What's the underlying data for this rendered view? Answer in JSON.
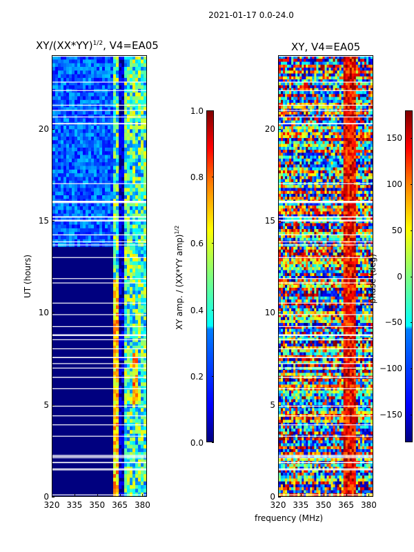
{
  "suptitle": "2021-01-17 0.0-24.0",
  "left_title": "XY/(XX*YY)",
  "left_title_sup": "1/2",
  "left_title_rest": ", V4=EA05",
  "right_title": "XY, V4=EA05",
  "ylabel": "UT (hours)",
  "xlabel": "frequency (MHz)",
  "cbar1_label": "XY amp. / (XX*YY amp)",
  "cbar1_label_sup": "1/2",
  "cbar2_label": "phase (deg)",
  "chart_data": [
    {
      "type": "heatmap",
      "title": "XY/(XX*YY)^1/2, V4=EA05",
      "xlabel": "",
      "ylabel": "UT (hours)",
      "xlim": [
        320,
        383
      ],
      "ylim": [
        0,
        24
      ],
      "xticks": [
        320,
        335,
        350,
        365,
        380
      ],
      "yticks": [
        0,
        5,
        10,
        15,
        20
      ],
      "colorbar": {
        "label": "XY amp. / (XX*YY amp)^1/2",
        "range": [
          0.0,
          1.0
        ],
        "ticks": [
          "0.0",
          "0.2",
          "0.4",
          "0.6",
          "0.8",
          "1.0"
        ],
        "colormap": "jet"
      }
    },
    {
      "type": "heatmap",
      "title": "XY, V4=EA05",
      "xlabel": "frequency (MHz)",
      "ylabel": "",
      "xlim": [
        320,
        383
      ],
      "ylim": [
        0,
        24
      ],
      "xticks": [
        320,
        335,
        350,
        365,
        380
      ],
      "yticks": [
        0,
        5,
        10,
        15,
        20
      ],
      "colorbar": {
        "label": "phase (deg)",
        "range": [
          -180,
          180
        ],
        "ticks": [
          "150",
          "100",
          "50",
          "0",
          "−50",
          "−100",
          "−150"
        ],
        "colormap": "jet"
      }
    }
  ]
}
